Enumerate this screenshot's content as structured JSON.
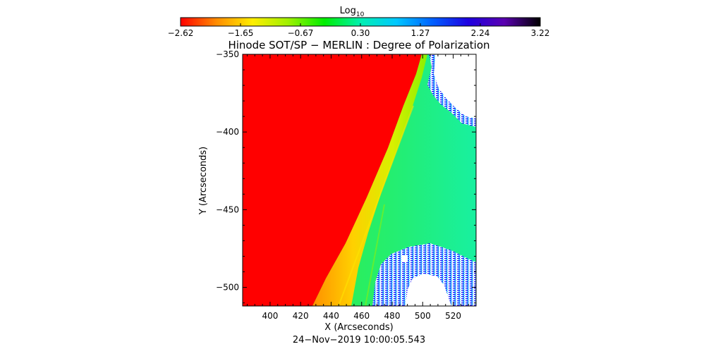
{
  "chart_data": {
    "type": "heatmap",
    "title": "Hinode SOT/SP − MERLIN : Degree of Polarization",
    "xlabel": "X (Arcseconds)",
    "ylabel": "Y (Arcseconds)",
    "timestamp": "24−Nov−2019 10:00:05.543",
    "xlim": [
      382,
      535
    ],
    "ylim": [
      -512,
      -350
    ],
    "x_ticks": [
      400,
      420,
      440,
      460,
      480,
      500,
      520
    ],
    "y_ticks": [
      -350,
      -400,
      -450,
      -500
    ],
    "x_tick_labels": [
      "400",
      "420",
      "440",
      "460",
      "480",
      "500",
      "520"
    ],
    "y_tick_labels": [
      "−350",
      "−400",
      "−450",
      "−500"
    ],
    "colorbar": {
      "label_base": "Log",
      "label_sub": "10",
      "min": -2.62,
      "max": 3.22,
      "tick_labels": [
        "−2.62",
        "−1.65",
        "−0.67",
        "0.30",
        "1.27",
        "2.24",
        "3.22"
      ],
      "colors": [
        "#ff0000",
        "#ff8c00",
        "#ffee00",
        "#9ff000",
        "#00ee00",
        "#00f0b0",
        "#00c8ff",
        "#0060ff",
        "#1e00e0",
        "#5a00b0",
        "#000000"
      ]
    },
    "regions": {
      "low": {
        "value": -2.62,
        "color": "#ff0000",
        "note_text": ""
      },
      "limb_band": {
        "values": [
          -1.2,
          -0.5
        ],
        "colors": [
          "#ff9a00",
          "#ffd400",
          "#c8f000"
        ]
      },
      "off_limb": {
        "value": 0.1,
        "color": "#33ee66"
      },
      "no_data": {
        "color": "#ffffff"
      },
      "noise": {
        "color": "#2010ff"
      }
    }
  }
}
